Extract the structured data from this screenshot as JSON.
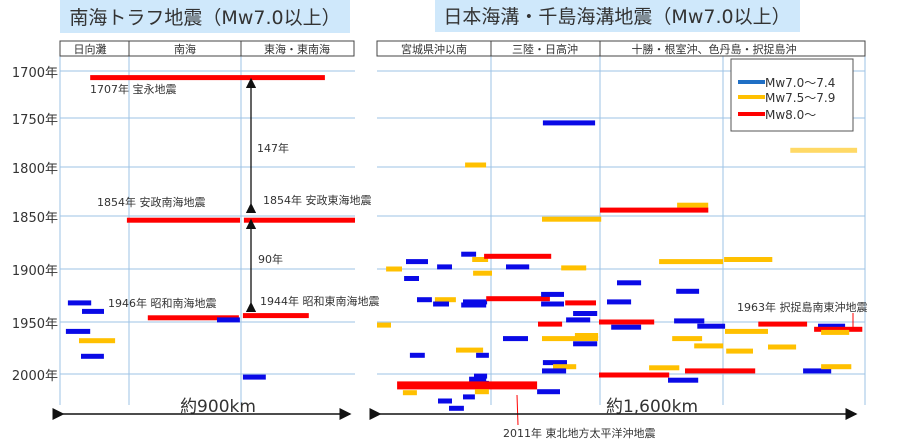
{
  "chart_data": [
    {
      "type": "timeline-bar",
      "title": "南海トラフ地震（Mw7.0以上）",
      "columns": [
        "日向灘",
        "南海",
        "東海・東南海"
      ],
      "x_extent_label": "約900km",
      "x_range_km": [
        0,
        900
      ],
      "y_ticks": [
        "1700年",
        "1750年",
        "1800年",
        "1850年",
        "1900年",
        "1950年",
        "2000年"
      ],
      "ylim": [
        1700,
        2000
      ],
      "grid": true,
      "annotations": [
        {
          "text": "1707年  宝永地震"
        },
        {
          "text": "1854年  安政南海地震"
        },
        {
          "text": "1854年  安政東海地震"
        },
        {
          "text": "147年"
        },
        {
          "text": "90年"
        },
        {
          "text": "1946年  昭和南海地震"
        },
        {
          "text": "1944年  昭和東南海地震"
        }
      ],
      "bars": [
        [
          92,
          808,
          1707,
          "r"
        ],
        [
          204,
          549,
          1854,
          "r"
        ],
        [
          561,
          900,
          1854,
          "r"
        ],
        [
          24,
          95,
          1932,
          "b"
        ],
        [
          67,
          134,
          1940,
          "b"
        ],
        [
          268,
          546,
          1946,
          "r"
        ],
        [
          479,
          549,
          1948,
          "b"
        ],
        [
          558,
          759,
          1944,
          "r"
        ],
        [
          18,
          92,
          1959,
          "b"
        ],
        [
          58,
          168,
          1968,
          "y"
        ],
        [
          64,
          134,
          1983,
          "b"
        ],
        [
          558,
          628,
          2003,
          "b"
        ]
      ]
    },
    {
      "type": "timeline-bar",
      "title": "日本海溝・千島海溝地震（Mw7.0以上）",
      "columns": [
        "宮城県沖以南",
        "三陸・日高沖",
        "十勝・根室沖、色丹島・択捉島沖"
      ],
      "x_extent_label": "約1,600km",
      "x_range_km": [
        0,
        1600
      ],
      "ylim": [
        1700,
        2000
      ],
      "grid": true,
      "legend": {
        "placement": "top-right",
        "entries": [
          {
            "label": "Mw7.0～7.4",
            "color": "#1f6fc5"
          },
          {
            "label": "Mw7.5～7.9",
            "color": "#ffc000"
          },
          {
            "label": "Mw8.0～",
            "color": "#ff0000"
          }
        ]
      },
      "annotations": [
        {
          "text": "1963年  択捉島南東沖地震"
        },
        {
          "text": "2011年  東北地方太平洋沖地震"
        }
      ],
      "bars": [
        [
          544,
          715,
          1755,
          "b"
        ],
        [
          289,
          358,
          1798,
          "y"
        ],
        [
          1355,
          1574,
          1783,
          "yl"
        ],
        [
          984,
          1086,
          1839,
          "y"
        ],
        [
          731,
          1086,
          1844,
          "r"
        ],
        [
          541,
          735,
          1853,
          "y"
        ],
        [
          276,
          325,
          1886,
          "b"
        ],
        [
          312,
          364,
          1891,
          "y"
        ],
        [
          351,
          571,
          1888,
          "r"
        ],
        [
          95,
          167,
          1893,
          "b"
        ],
        [
          197,
          246,
          1898,
          "b"
        ],
        [
          30,
          82,
          1900,
          "y"
        ],
        [
          423,
          499,
          1898,
          "b"
        ],
        [
          604,
          686,
          1899,
          "y"
        ],
        [
          925,
          1135,
          1893,
          "y"
        ],
        [
          1138,
          1296,
          1891,
          "y"
        ],
        [
          315,
          377,
          1904,
          "y"
        ],
        [
          89,
          138,
          1909,
          "b"
        ],
        [
          787,
          866,
          1913,
          "b"
        ],
        [
          981,
          1056,
          1921,
          "b"
        ],
        [
          131,
          180,
          1929,
          "b"
        ],
        [
          190,
          259,
          1929,
          "y"
        ],
        [
          184,
          236,
          1933,
          "b"
        ],
        [
          282,
          361,
          1931,
          "b"
        ],
        [
          276,
          358,
          1934,
          "b"
        ],
        [
          358,
          567,
          1928,
          "r"
        ],
        [
          538,
          613,
          1924,
          "b"
        ],
        [
          538,
          613,
          1933,
          "b"
        ],
        [
          617,
          718,
          1932,
          "r"
        ],
        [
          754,
          833,
          1931,
          "b"
        ],
        [
          643,
          722,
          1942,
          "b"
        ],
        [
          620,
          699,
          1948,
          "b"
        ],
        [
          0,
          46,
          1953,
          "y"
        ],
        [
          528,
          607,
          1952,
          "r"
        ],
        [
          728,
          909,
          1950,
          "r"
        ],
        [
          768,
          866,
          1955,
          "b"
        ],
        [
          974,
          1073,
          1949,
          "b"
        ],
        [
          1050,
          1141,
          1954,
          "b"
        ],
        [
          1250,
          1410,
          1952,
          "r"
        ],
        [
          1446,
          1535,
          1954,
          "b"
        ],
        [
          1433,
          1591,
          1957,
          "r"
        ],
        [
          1141,
          1282,
          1959,
          "y"
        ],
        [
          1456,
          1548,
          1960,
          "y"
        ],
        [
          413,
          495,
          1966,
          "b"
        ],
        [
          541,
          725,
          1966,
          "y"
        ],
        [
          649,
          725,
          1963,
          "y"
        ],
        [
          643,
          722,
          1971,
          "b"
        ],
        [
          968,
          1066,
          1966,
          "y"
        ],
        [
          1040,
          1135,
          1973,
          "y"
        ],
        [
          1145,
          1233,
          1978,
          "y"
        ],
        [
          1282,
          1374,
          1974,
          "y"
        ],
        [
          259,
          348,
          1977,
          "y"
        ],
        [
          108,
          157,
          1982,
          "b"
        ],
        [
          325,
          367,
          1982,
          "b"
        ],
        [
          544,
          623,
          1989,
          "b"
        ],
        [
          577,
          653,
          1993,
          "y"
        ],
        [
          541,
          620,
          1997,
          "b"
        ],
        [
          892,
          991,
          1994,
          "y"
        ],
        [
          1010,
          1240,
          1997,
          "r"
        ],
        [
          1397,
          1489,
          1997,
          "b"
        ],
        [
          1456,
          1555,
          1993,
          "y"
        ],
        [
          728,
          958,
          2001,
          "r"
        ],
        [
          954,
          1053,
          2006,
          "b"
        ],
        [
          318,
          361,
          2002,
          "b"
        ],
        [
          302,
          358,
          2005,
          "b"
        ],
        [
          321,
          367,
          2009,
          "b"
        ],
        [
          66,
          525,
          2011,
          "R"
        ],
        [
          85,
          131,
          2018,
          "y"
        ],
        [
          321,
          367,
          2017,
          "y"
        ],
        [
          525,
          600,
          2017,
          "b"
        ],
        [
          282,
          321,
          2022,
          "b"
        ],
        [
          200,
          246,
          2026,
          "b"
        ],
        [
          236,
          285,
          2033,
          "b"
        ]
      ]
    }
  ],
  "colors": {
    "b": "#0a0ae6",
    "y": "#ffc000",
    "yl": "#ffd966",
    "r": "#ff0000",
    "R": "#ff0000",
    "grid": "#9dc3e6",
    "title_bg": "#cfe8fb"
  }
}
